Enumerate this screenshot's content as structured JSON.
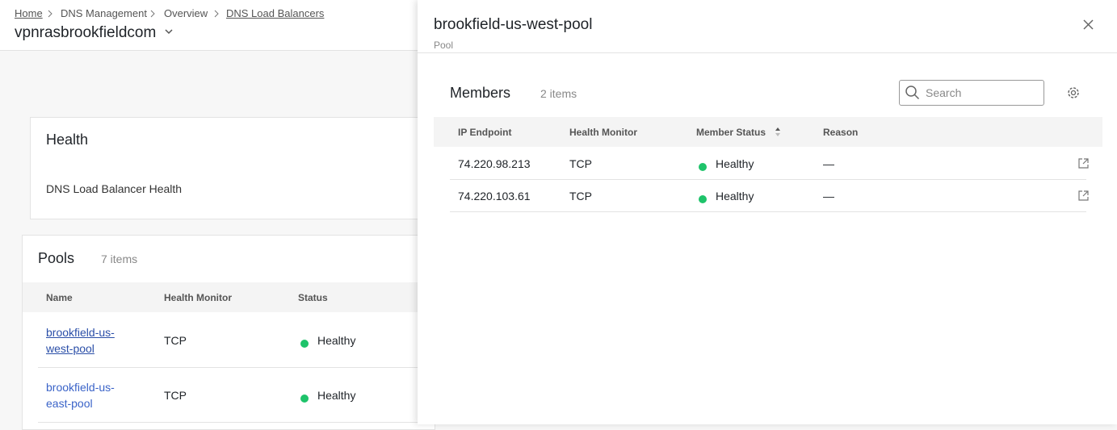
{
  "breadcrumb": [
    "Home",
    "DNS Management",
    "Overview",
    "DNS Load Balancers"
  ],
  "zone": "vpnrasbrookfieldcom",
  "health": {
    "title": "Health",
    "subtitle": "DNS Load Balancer Health"
  },
  "pools": {
    "title": "Pools",
    "count": "7 items",
    "columns": [
      "Name",
      "Health Monitor",
      "Status"
    ],
    "rows": [
      [
        "brookfield-us-west-pool",
        "TCP",
        "Healthy"
      ],
      [
        "brookfield-us-east-pool",
        "TCP",
        "Healthy"
      ]
    ]
  },
  "panel": {
    "title": "brookfield-us-west-pool",
    "subtitle": "Pool",
    "members_title": "Members",
    "count": "2 items",
    "search_placeholder": "Search",
    "columns": [
      "IP Endpoint",
      "Health Monitor",
      "Member Status",
      "Reason"
    ],
    "rows": [
      [
        "74.220.98.213",
        "TCP",
        "Healthy",
        "—"
      ],
      [
        "74.220.103.61",
        "TCP",
        "Healthy",
        "—"
      ]
    ]
  }
}
